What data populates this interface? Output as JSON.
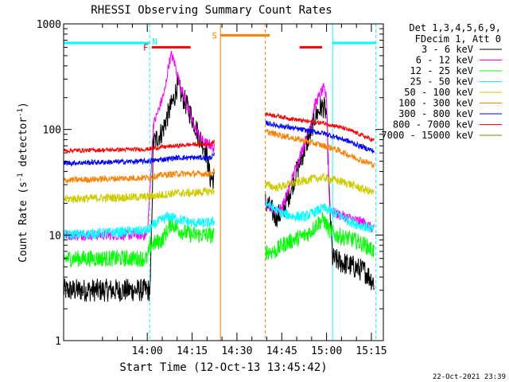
{
  "chart_data": {
    "type": "line",
    "title": "RHESSI Observing Summary Count Rates",
    "xlabel": "Start Time (12-Oct-13 13:45:42)",
    "ylabel_parts": [
      "Count Rate (s",
      "-1",
      " detector",
      "-1",
      ")"
    ],
    "yscale": "log",
    "ylim": [
      1,
      1000
    ],
    "xlim_min": [
      -13,
      94
    ],
    "x_ticks": [
      {
        "t": 15,
        "label": "14:00"
      },
      {
        "t": 30,
        "label": "14:15"
      },
      {
        "t": 45,
        "label": "14:30"
      },
      {
        "t": 60,
        "label": "14:45"
      },
      {
        "t": 75,
        "label": "15:00"
      },
      {
        "t": 90,
        "label": "15:15"
      }
    ],
    "y_ticks": [
      {
        "v": 1,
        "label": "1"
      },
      {
        "v": 10,
        "label": "10"
      },
      {
        "v": 100,
        "label": "100"
      },
      {
        "v": 1000,
        "label": "1000"
      }
    ],
    "legend_header": [
      "Det 1,3,4,5,6,9,",
      "FDecim 1, Att 0"
    ],
    "legend_position": "right",
    "series": [
      {
        "name": "3 - 6 keV",
        "color": "#000000",
        "noise": 0.11,
        "points": [
          [
            -13,
            3
          ],
          [
            2,
            3
          ],
          [
            16,
            3
          ],
          [
            17,
            75
          ],
          [
            20,
            95
          ],
          [
            22,
            140
          ],
          [
            24,
            200
          ],
          [
            25,
            260
          ],
          [
            27,
            200
          ],
          [
            29,
            150
          ],
          [
            31,
            110
          ],
          [
            32,
            90
          ],
          [
            34,
            70
          ],
          [
            35,
            55
          ],
          [
            36,
            35
          ],
          [
            55,
            20
          ],
          [
            58,
            15
          ],
          [
            60,
            16
          ],
          [
            62,
            22
          ],
          [
            64,
            33
          ],
          [
            66,
            48
          ],
          [
            68,
            70
          ],
          [
            70,
            100
          ],
          [
            71,
            130
          ],
          [
            73,
            160
          ],
          [
            74,
            165
          ],
          [
            75,
            140
          ],
          [
            76,
            20
          ],
          [
            77,
            6
          ],
          [
            80,
            5.5
          ],
          [
            84,
            5
          ],
          [
            88,
            4.5
          ],
          [
            91,
            3.5
          ]
        ],
        "gaps": [
          [
            37.5,
            54.5
          ]
        ]
      },
      {
        "name": "6 - 12 keV",
        "color": "#ff00ff",
        "noise": 0.05,
        "points": [
          [
            -13,
            10
          ],
          [
            2,
            10
          ],
          [
            15,
            10
          ],
          [
            16,
            30
          ],
          [
            17,
            110
          ],
          [
            19,
            160
          ],
          [
            21,
            240
          ],
          [
            22,
            390
          ],
          [
            23,
            510
          ],
          [
            24,
            440
          ],
          [
            25,
            340
          ],
          [
            26,
            260
          ],
          [
            28,
            180
          ],
          [
            30,
            120
          ],
          [
            32,
            90
          ],
          [
            34,
            75
          ],
          [
            36,
            72
          ],
          [
            55,
            20
          ],
          [
            58,
            17
          ],
          [
            60,
            18
          ],
          [
            62,
            25
          ],
          [
            64,
            38
          ],
          [
            66,
            55
          ],
          [
            68,
            80
          ],
          [
            70,
            120
          ],
          [
            71,
            170
          ],
          [
            73,
            220
          ],
          [
            74,
            245
          ],
          [
            75,
            200
          ],
          [
            76,
            18
          ],
          [
            78,
            16
          ],
          [
            84,
            14
          ],
          [
            88,
            13
          ],
          [
            91,
            11
          ]
        ],
        "gaps": [
          [
            37.5,
            54.5
          ]
        ]
      },
      {
        "name": "12 - 25 keV",
        "color": "#00ff00",
        "noise": 0.08,
        "points": [
          [
            -13,
            6
          ],
          [
            15,
            6
          ],
          [
            16,
            8
          ],
          [
            20,
            9
          ],
          [
            23,
            13
          ],
          [
            26,
            11
          ],
          [
            30,
            10
          ],
          [
            36,
            10
          ],
          [
            55,
            7
          ],
          [
            58,
            7
          ],
          [
            60,
            8
          ],
          [
            64,
            9
          ],
          [
            68,
            10
          ],
          [
            70,
            11
          ],
          [
            72,
            13
          ],
          [
            74,
            14
          ],
          [
            76,
            11
          ],
          [
            78,
            10
          ],
          [
            84,
            9
          ],
          [
            88,
            8
          ],
          [
            91,
            7
          ]
        ],
        "gaps": [
          [
            37.5,
            54.5
          ]
        ]
      },
      {
        "name": "25 - 50 keV",
        "color": "#00ffff",
        "noise": 0.05,
        "points": [
          [
            -13,
            10
          ],
          [
            15,
            11
          ],
          [
            18,
            13
          ],
          [
            22,
            15
          ],
          [
            26,
            14
          ],
          [
            30,
            13
          ],
          [
            36,
            13
          ],
          [
            55,
            20
          ],
          [
            57,
            18
          ],
          [
            60,
            16
          ],
          [
            64,
            15
          ],
          [
            68,
            15
          ],
          [
            72,
            17
          ],
          [
            74,
            18
          ],
          [
            76,
            17
          ],
          [
            80,
            15
          ],
          [
            84,
            13
          ],
          [
            88,
            12
          ],
          [
            91,
            11
          ]
        ],
        "gaps": [
          [
            37.5,
            54.5
          ]
        ]
      },
      {
        "name": "50 - 100 keV",
        "color": "#cccc00",
        "noise": 0.04,
        "points": [
          [
            -13,
            22
          ],
          [
            15,
            23
          ],
          [
            20,
            24
          ],
          [
            24,
            25
          ],
          [
            30,
            25
          ],
          [
            36,
            26
          ],
          [
            55,
            30
          ],
          [
            58,
            28
          ],
          [
            62,
            30
          ],
          [
            66,
            32
          ],
          [
            70,
            34
          ],
          [
            74,
            35
          ],
          [
            78,
            33
          ],
          [
            82,
            31
          ],
          [
            86,
            28
          ],
          [
            91,
            25
          ]
        ],
        "gaps": [
          [
            37.5,
            54.5
          ]
        ]
      },
      {
        "name": "100 - 300 keV",
        "color": "#ff8000",
        "noise": 0.03,
        "points": [
          [
            -13,
            33
          ],
          [
            15,
            35
          ],
          [
            20,
            37
          ],
          [
            25,
            38
          ],
          [
            30,
            38
          ],
          [
            36,
            38
          ],
          [
            55,
            95
          ],
          [
            58,
            90
          ],
          [
            62,
            85
          ],
          [
            66,
            80
          ],
          [
            70,
            75
          ],
          [
            74,
            70
          ],
          [
            78,
            65
          ],
          [
            82,
            58
          ],
          [
            86,
            52
          ],
          [
            91,
            46
          ]
        ],
        "gaps": [
          [
            37.5,
            54.5
          ]
        ]
      },
      {
        "name": "300 - 800 keV",
        "color": "#0000ff",
        "noise": 0.025,
        "points": [
          [
            -13,
            48
          ],
          [
            15,
            50
          ],
          [
            20,
            52
          ],
          [
            25,
            54
          ],
          [
            30,
            54
          ],
          [
            36,
            54
          ],
          [
            55,
            115
          ],
          [
            58,
            110
          ],
          [
            62,
            105
          ],
          [
            66,
            100
          ],
          [
            70,
            96
          ],
          [
            74,
            92
          ],
          [
            78,
            85
          ],
          [
            82,
            78
          ],
          [
            86,
            70
          ],
          [
            91,
            62
          ]
        ],
        "gaps": [
          [
            37.5,
            54.5
          ]
        ]
      },
      {
        "name": "800 - 7000 keV",
        "color": "#ff0000",
        "noise": 0.02,
        "points": [
          [
            -13,
            63
          ],
          [
            15,
            65
          ],
          [
            20,
            68
          ],
          [
            25,
            70
          ],
          [
            30,
            72
          ],
          [
            36,
            73
          ],
          [
            55,
            140
          ],
          [
            58,
            135
          ],
          [
            62,
            128
          ],
          [
            66,
            122
          ],
          [
            70,
            118
          ],
          [
            74,
            115
          ],
          [
            78,
            108
          ],
          [
            82,
            100
          ],
          [
            86,
            90
          ],
          [
            91,
            78
          ]
        ],
        "gaps": [
          [
            37.5,
            54.5
          ]
        ]
      },
      {
        "name": "7000 - 15000 keV",
        "color": "#808000",
        "noise": 0.0,
        "points": [],
        "gaps": []
      }
    ],
    "annotations": [
      {
        "type": "bar",
        "color": "#00ffff",
        "t0": -13,
        "t1": 15.8,
        "y": 660
      },
      {
        "type": "bar",
        "color": "#00ffff",
        "t0": 77,
        "t1": 91.5,
        "y": 660
      },
      {
        "type": "bar",
        "color": "#ff0000",
        "t0": 16.5,
        "t1": 29.5,
        "y": 600
      },
      {
        "type": "bar",
        "color": "#ff0000",
        "t0": 66,
        "t1": 73.5,
        "y": 600
      },
      {
        "type": "bar",
        "color": "#ff8000",
        "t0": 39.5,
        "t1": 56,
        "y": 780
      },
      {
        "type": "label",
        "text": "F",
        "color": "#ff0000",
        "t": 14.5,
        "y": 600
      },
      {
        "type": "label",
        "text": "N",
        "color": "#00ffff",
        "t": 17.5,
        "y": 680
      },
      {
        "type": "label",
        "text": "S",
        "color": "#ff8000",
        "t": 37.5,
        "y": 780
      },
      {
        "type": "vline",
        "color": "#00ffff",
        "style": "dashed",
        "t": 15.8
      },
      {
        "type": "vline",
        "color": "#ff8000",
        "style": "solid",
        "t": 39.5
      },
      {
        "type": "vline",
        "color": "#ff8000",
        "style": "dashed",
        "t": 54.5
      },
      {
        "type": "vline",
        "color": "#00ffff",
        "style": "solid",
        "t": 77
      },
      {
        "type": "vline",
        "color": "#00ffff",
        "style": "dashed",
        "t": 91.5
      },
      {
        "type": "vline",
        "color": "#00ffff",
        "style": "solid",
        "t": -13
      }
    ],
    "footer": "22-Oct-2021 23:39"
  }
}
